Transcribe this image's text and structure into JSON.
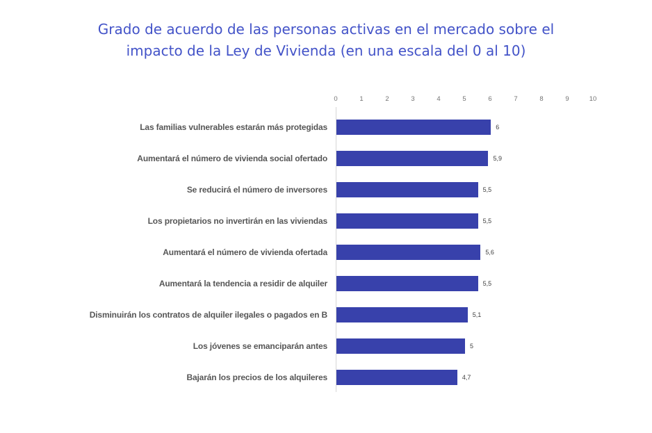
{
  "colors": {
    "title": "#4353C8",
    "bar": "#3841AB",
    "category_label": "#565656",
    "value_label": "#3F3F3F",
    "tick_label": "#737373",
    "axis_line": "#D6D6D6",
    "background": "#FFFFFF"
  },
  "chart_data": {
    "type": "bar",
    "orientation": "horizontal",
    "title": "Grado de acuerdo de las personas activas en el mercado sobre el impacto de la Ley de Vivienda (en una escala del 0 al 10)",
    "categories": [
      "Las familias vulnerables estarán más protegidas",
      "Aumentará el número de vivienda social ofertado",
      "Se reducirá el número de inversores",
      "Los propietarios no invertirán en las viviendas",
      "Aumentará el número de vivienda ofertada",
      "Aumentará la tendencia a residir de alquiler",
      "Disminuirán los contratos de alquiler ilegales o pagados en B",
      "Los jóvenes se emanciparán antes",
      "Bajarán los precios de los alquileres"
    ],
    "values": [
      6,
      5.9,
      5.5,
      5.5,
      5.6,
      5.5,
      5.1,
      5,
      4.7
    ],
    "value_labels": [
      "6",
      "5,9",
      "5,5",
      "5,5",
      "5,6",
      "5,5",
      "5,1",
      "5",
      "4,7"
    ],
    "xlim": [
      0,
      10
    ],
    "x_ticks": [
      0,
      1,
      2,
      3,
      4,
      5,
      6,
      7,
      8,
      9,
      10
    ],
    "xlabel": "",
    "ylabel": "",
    "grid": false,
    "legend": false,
    "axis_position": "top",
    "bar_color": "#3841AB"
  }
}
